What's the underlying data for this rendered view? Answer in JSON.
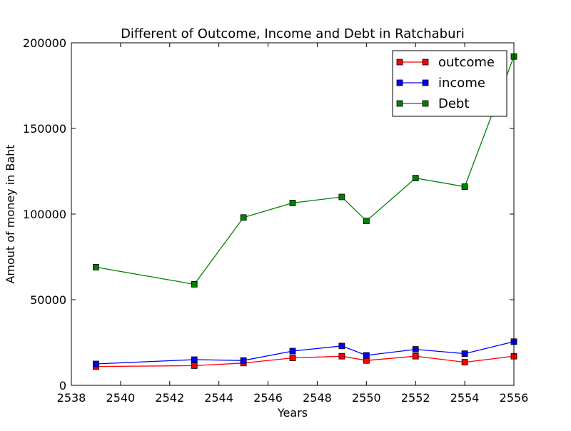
{
  "chart_data": {
    "type": "line",
    "title": "Different of Outcome, Income and Debt in Ratchaburi",
    "xlabel": "Years",
    "ylabel": "Amout of money in Baht",
    "xlim": [
      2538,
      2556
    ],
    "ylim": [
      0,
      200000
    ],
    "xticks": [
      2538,
      2540,
      2542,
      2544,
      2546,
      2548,
      2550,
      2552,
      2554,
      2556
    ],
    "yticks": [
      0,
      50000,
      100000,
      150000,
      200000
    ],
    "grid": false,
    "legend_position": "upper-right",
    "x": [
      2539,
      2543,
      2545,
      2547,
      2549,
      2550,
      2552,
      2554,
      2556
    ],
    "series": [
      {
        "name": "outcome",
        "color": "#ff0000",
        "values": [
          11000,
          11500,
          13000,
          16000,
          17000,
          14500,
          17000,
          13500,
          17000
        ]
      },
      {
        "name": "income",
        "color": "#0000ff",
        "values": [
          12500,
          15000,
          14500,
          20000,
          23000,
          17500,
          21000,
          18500,
          25500
        ]
      },
      {
        "name": "Debt",
        "color": "#008000",
        "values": [
          69000,
          59000,
          98000,
          106500,
          110000,
          96000,
          121000,
          116000,
          192000
        ]
      }
    ]
  }
}
